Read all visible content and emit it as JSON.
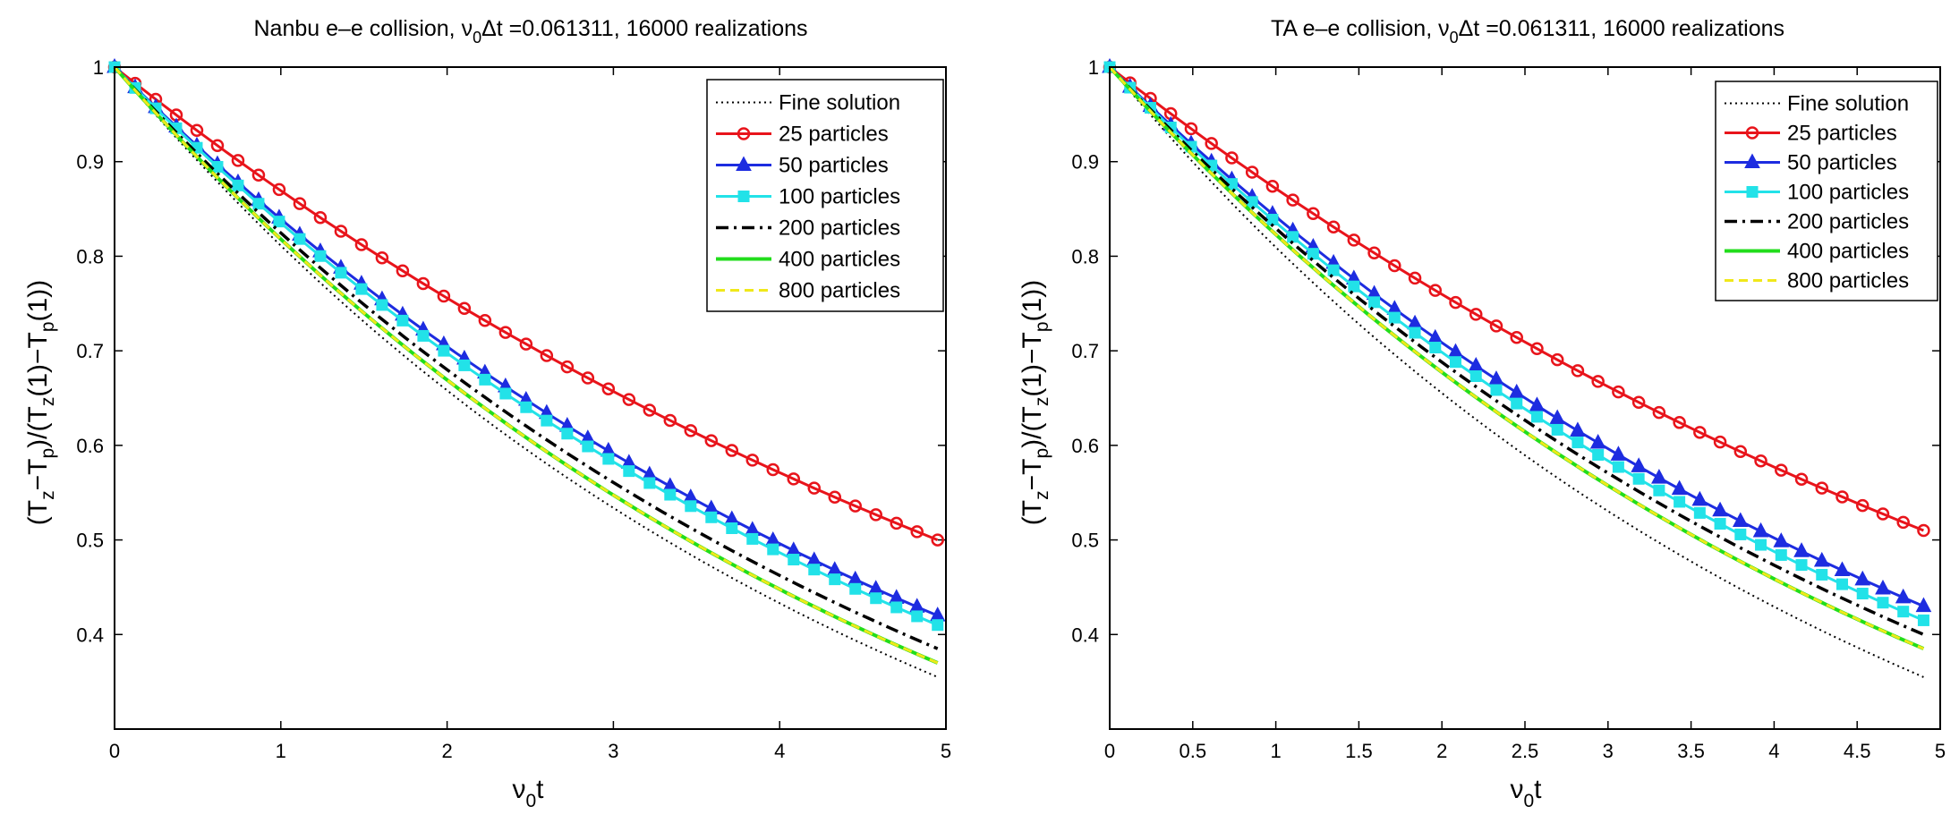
{
  "colors": {
    "fine": "#000000",
    "p25": "#e8141b",
    "p50": "#1d2ce0",
    "p100": "#22e2e8",
    "p200": "#000000",
    "p400": "#22dd1c",
    "p800": "#f0e81a"
  },
  "chart_data": [
    {
      "type": "line",
      "title": "Nanbu e–e collision, ν0Δt =0.061311, 16000 realizations",
      "title_parts": {
        "pre": "Nanbu e–e collision, ",
        "nu": "ν",
        "sub0": "0",
        "post": "Δt =0.061311, 16000 realizations"
      },
      "xlabel": "ν0t",
      "xlabel_parts": {
        "nu": "ν",
        "sub": "0",
        "t": "t"
      },
      "ylabel": "(Tz−Tp)/(Tz(1)−Tp(1))",
      "xlim": [
        0,
        5
      ],
      "ylim": [
        0.3,
        1.0
      ],
      "xticks": [
        0,
        1,
        2,
        3,
        4,
        5
      ],
      "xtick_labels": [
        "0",
        "1",
        "2",
        "3",
        "4",
        "5"
      ],
      "yticks": [
        0.4,
        0.5,
        0.6,
        0.7,
        0.8,
        0.9,
        1.0
      ],
      "ytick_labels": [
        "0.4",
        "0.5",
        "0.6",
        "0.7",
        "0.8",
        "0.9",
        "1"
      ],
      "grid": false,
      "legend_position": "top-right",
      "x_end": 4.95,
      "series": [
        {
          "name": "Fine solution",
          "style": "fine",
          "y_end": 0.355
        },
        {
          "name": "25 particles",
          "style": "p25",
          "y_end": 0.5
        },
        {
          "name": "50 particles",
          "style": "p50",
          "y_end": 0.42
        },
        {
          "name": "100 particles",
          "style": "p100",
          "y_end": 0.41
        },
        {
          "name": "200 particles",
          "style": "p200",
          "y_end": 0.385
        },
        {
          "name": "400 particles",
          "style": "p400",
          "y_end": 0.37
        },
        {
          "name": "800 particles",
          "style": "p800",
          "y_end": 0.37
        }
      ]
    },
    {
      "type": "line",
      "title": "TA e–e collision, ν0Δt =0.061311, 16000 realizations",
      "title_parts": {
        "pre": "TA e–e collision, ",
        "nu": "ν",
        "sub0": "0",
        "post": "Δt =0.061311, 16000 realizations"
      },
      "xlabel": "ν0t",
      "xlabel_parts": {
        "nu": "ν",
        "sub": "0",
        "t": "t"
      },
      "ylabel": "(Tz−Tp)/(Tz(1)−Tp(1))",
      "xlim": [
        0,
        5
      ],
      "ylim": [
        0.3,
        1.0
      ],
      "xticks": [
        0,
        0.5,
        1,
        1.5,
        2,
        2.5,
        3,
        3.5,
        4,
        4.5,
        5
      ],
      "xtick_labels": [
        "0",
        "0.5",
        "1",
        "1.5",
        "2",
        "2.5",
        "3",
        "3.5",
        "4",
        "4.5",
        "5"
      ],
      "yticks": [
        0.4,
        0.5,
        0.6,
        0.7,
        0.8,
        0.9,
        1.0
      ],
      "ytick_labels": [
        "0.4",
        "0.5",
        "0.6",
        "0.7",
        "0.8",
        "0.9",
        "1"
      ],
      "grid": false,
      "legend_position": "top-right",
      "x_end": 4.9,
      "series": [
        {
          "name": "Fine solution",
          "style": "fine",
          "y_end": 0.355
        },
        {
          "name": "25 particles",
          "style": "p25",
          "y_end": 0.51
        },
        {
          "name": "50 particles",
          "style": "p50",
          "y_end": 0.43
        },
        {
          "name": "100 particles",
          "style": "p100",
          "y_end": 0.415
        },
        {
          "name": "200 particles",
          "style": "p200",
          "y_end": 0.4
        },
        {
          "name": "400 particles",
          "style": "p400",
          "y_end": 0.385
        },
        {
          "name": "800 particles",
          "style": "p800",
          "y_end": 0.385
        }
      ]
    }
  ]
}
